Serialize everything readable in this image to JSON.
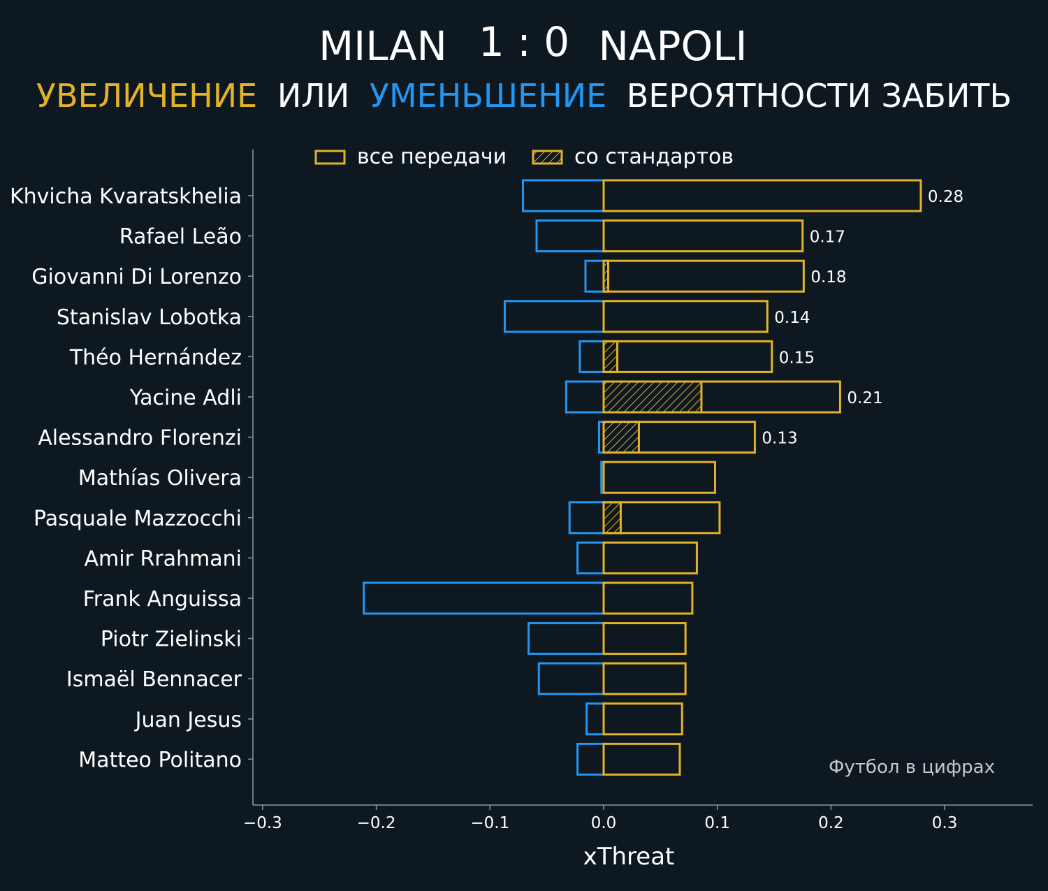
{
  "header": {
    "team_home": "MILAN",
    "score": "1 : 0",
    "team_away": "NAPOLI",
    "subtitle_increase": "УВЕЛИЧЕНИЕ",
    "subtitle_or": "ИЛИ",
    "subtitle_decrease": "УМЕНЬШЕНИЕ",
    "subtitle_rest": "ВЕРОЯТНОСТИ ЗАБИТЬ"
  },
  "legend": {
    "all_passes": "все передачи",
    "set_pieces": "со стандартов"
  },
  "credit": "Футбол в цифрах",
  "colors": {
    "background": "#0e1820",
    "increase": "#e3b226",
    "decrease": "#2196f3",
    "axis": "#8a9aa0"
  },
  "chart_data": {
    "type": "bar",
    "orientation": "horizontal",
    "xlabel": "xThreat",
    "xlim": [
      -0.3,
      0.38
    ],
    "xticks": [
      "−0.3",
      "−0.2",
      "−0.1",
      "0.0",
      "0.1",
      "0.2",
      "0.3"
    ],
    "xtick_values": [
      -0.3,
      -0.2,
      -0.1,
      0.0,
      0.1,
      0.2,
      0.3
    ],
    "legend_position": "top",
    "categories": [
      "Khvicha Kvaratskhelia",
      "Rafael Leão",
      "Giovanni Di Lorenzo",
      "Stanislav Lobotka",
      "Théo Hernández",
      "Yacine Adli",
      "Alessandro Florenzi",
      "Mathías Olivera",
      "Pasquale Mazzocchi",
      "Amir Rrahmani",
      "Frank Anguissa",
      "Piotr Zielinski",
      "Ismaël Bennacer",
      "Juan Jesus",
      "Matteo Politano"
    ],
    "series": [
      {
        "name": "все передачи",
        "values": [
          0.279,
          0.175,
          0.176,
          0.144,
          0.148,
          0.208,
          0.133,
          0.098,
          0.102,
          0.082,
          0.078,
          0.072,
          0.072,
          0.069,
          0.067
        ]
      },
      {
        "name": "со стандартов",
        "values": [
          0,
          0,
          0.004,
          0,
          0.012,
          0.086,
          0.031,
          0,
          0.015,
          0,
          0,
          0,
          0,
          0,
          0
        ]
      },
      {
        "values": [
          -0.071,
          -0.059,
          -0.016,
          -0.087,
          -0.021,
          -0.033,
          -0.004,
          -0.002,
          -0.03,
          -0.023,
          -0.211,
          -0.066,
          -0.057,
          -0.015,
          -0.023
        ]
      }
    ],
    "value_labels": [
      "0.28",
      "0.17",
      "0.18",
      "0.14",
      "0.15",
      "0.21",
      "0.13",
      "",
      "",
      "",
      "",
      "",
      "",
      "",
      ""
    ]
  }
}
